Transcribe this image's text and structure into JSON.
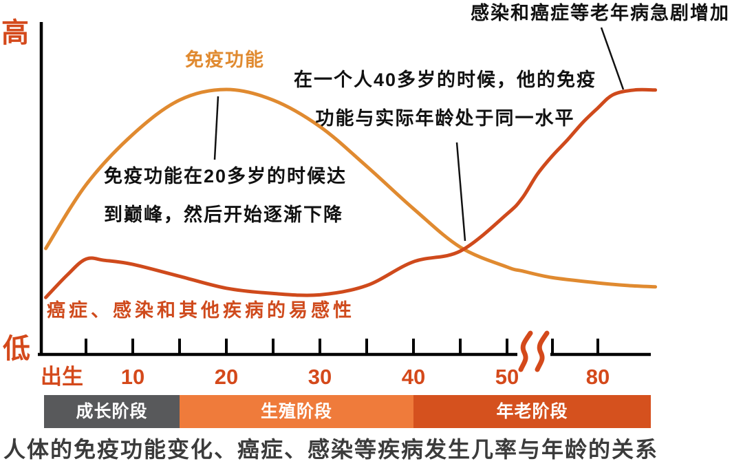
{
  "caption": "人体的免疫功能变化、癌症、感染等疾病发生几率与年龄的关系",
  "y_axis": {
    "high_label": "高",
    "low_label": "低"
  },
  "x_axis": {
    "ticks": [
      {
        "label": "出生",
        "age": 0
      },
      {
        "label": "10",
        "age": 10
      },
      {
        "label": "20",
        "age": 20
      },
      {
        "label": "30",
        "age": 30
      },
      {
        "label": "40",
        "age": 40
      },
      {
        "label": "50",
        "age": 50
      },
      {
        "label": "80",
        "age": 80
      }
    ],
    "has_axis_break": true,
    "break_between": [
      "50",
      "80"
    ]
  },
  "series_labels": {
    "immune": "免疫功能",
    "susceptibility": "癌症、感染和其他疾病的易感性"
  },
  "annotations": {
    "peak": {
      "line1": "免疫功能在20多岁的时候达",
      "line2": "到巅峰，然后开始逐渐下降"
    },
    "midlife": {
      "line1": "在一个人40多岁的时候，他的免疫",
      "line2": "功能与实际年龄处于同一水平"
    },
    "oldage": {
      "text": "感染和癌症等老年病急剧增加"
    }
  },
  "stage_bands": [
    {
      "name": "growth",
      "label": "成长阶段",
      "color": "#58595B",
      "age_from": 0,
      "age_to": 15
    },
    {
      "name": "reproductive",
      "label": "生殖阶段",
      "color": "#EF7B3B",
      "age_from": 15,
      "age_to": 40
    },
    {
      "name": "old-age",
      "label": "年老阶段",
      "color": "#D5511E",
      "age_from": 40,
      "age_to": 90
    }
  ],
  "colors": {
    "immune_curve": "#E08A30",
    "susceptibility_curve": "#CF4A1C",
    "axis": "#000000",
    "axis_labels": "#D4491B",
    "annotation_text": "#111111",
    "caption_text": "#3B3B3B",
    "band_text": "#FFFFFF"
  },
  "chart_data": {
    "type": "line",
    "title": "人体的免疫功能变化、癌症、感染等疾病发生几率与年龄的关系",
    "x_axis": {
      "tick_labels": [
        "出生",
        "10",
        "20",
        "30",
        "40",
        "50",
        "80"
      ],
      "axis_break_between": [
        50,
        80
      ]
    },
    "y_axis": {
      "min_label": "低",
      "max_label": "高",
      "scale": "relative level 0-100"
    },
    "legend_position": "labels-on-curves",
    "grid": false,
    "series": [
      {
        "name": "免疫功能",
        "color": "#E08A30",
        "points_age_level": [
          [
            0.7,
            40
          ],
          [
            5,
            64
          ],
          [
            10,
            83
          ],
          [
            15,
            96
          ],
          [
            20,
            100
          ],
          [
            25,
            96
          ],
          [
            30,
            86
          ],
          [
            35,
            71
          ],
          [
            40,
            55
          ],
          [
            45,
            40.5
          ],
          [
            50,
            33
          ],
          [
            55,
            31.5
          ],
          [
            65,
            29
          ],
          [
            80,
            27
          ],
          [
            90,
            26
          ],
          [
            99,
            25.5
          ]
        ]
      },
      {
        "name": "癌症、感染和其他疾病的易感性",
        "color": "#CF4A1C",
        "points_age_level": [
          [
            0.7,
            21.5
          ],
          [
            3,
            30
          ],
          [
            5,
            36
          ],
          [
            7,
            35.5
          ],
          [
            10,
            34
          ],
          [
            15,
            29.5
          ],
          [
            20,
            25
          ],
          [
            25,
            23
          ],
          [
            30,
            22.5
          ],
          [
            35,
            26
          ],
          [
            40,
            35
          ],
          [
            45,
            39
          ],
          [
            50,
            53
          ],
          [
            55,
            59
          ],
          [
            60,
            68
          ],
          [
            65,
            75
          ],
          [
            70,
            81
          ],
          [
            75,
            87.5
          ],
          [
            80,
            93
          ],
          [
            85,
            98
          ],
          [
            92,
            99.8
          ],
          [
            99,
            99.8
          ]
        ]
      }
    ],
    "annotations": [
      "免疫功能在20多岁的时候达到巅峰，然后开始逐渐下降",
      "在一个人40多岁的时候，他的免疫功能与实际年龄处于同一水平",
      "感染和癌症等老年病急剧增加"
    ],
    "stages": [
      {
        "label": "成长阶段",
        "age_range": [
          0,
          15
        ]
      },
      {
        "label": "生殖阶段",
        "age_range": [
          15,
          40
        ]
      },
      {
        "label": "年老阶段",
        "age_range": [
          40,
          90
        ]
      }
    ]
  }
}
